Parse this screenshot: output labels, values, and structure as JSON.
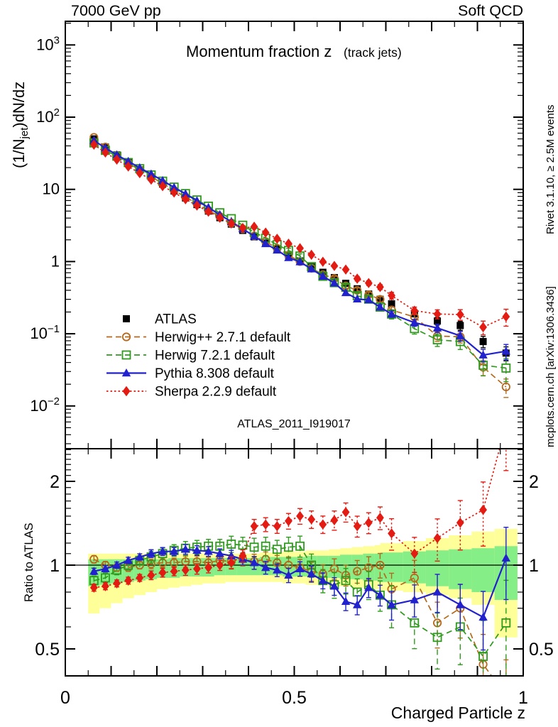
{
  "header": {
    "left": "7000 GeV pp",
    "right": "Soft QCD"
  },
  "titles": {
    "main": "Momentum fraction z",
    "sub": "(track jets)",
    "watermark": "ATLAS_2011_I919017",
    "xlabel": "Charged Particle z",
    "ylabel_pre": "(1/N",
    "ylabel_sub": "jet",
    "ylabel_post": ")dN/dz",
    "ratio_ylabel": "Ratio to ATLAS",
    "right_note_top": "Rivet 3.1.10, ≥ 2.5M events",
    "right_note_bottom": "mcplots.cern.ch [arXiv:1306.3436]"
  },
  "colors": {
    "axis": "#000000",
    "watermark": "#b3b3b3",
    "side_note": "#8a8a8a",
    "atlas": "#000000",
    "herwigpp": "#b5691c",
    "herwig7": "#2f9a1e",
    "pythia": "#2121cd",
    "sherpa": "#e31b12",
    "band_yellow": "#ffff99",
    "band_green": "#86ee86"
  },
  "axes": {
    "main_y_ticks": [
      {
        "v": 1000,
        "base": "10",
        "sup": "3"
      },
      {
        "v": 100,
        "base": "10",
        "sup": "2"
      },
      {
        "v": 10,
        "base": "10",
        "sup": ""
      },
      {
        "v": 1,
        "base": "1",
        "sup": ""
      },
      {
        "v": 0.1,
        "base": "10",
        "sup": "−1"
      },
      {
        "v": 0.01,
        "base": "10",
        "sup": "−2"
      }
    ],
    "ratio_y_ticks": [
      {
        "v": 2,
        "label": "2"
      },
      {
        "v": 1,
        "label": "1"
      },
      {
        "v": 0.5,
        "label": "0.5"
      }
    ],
    "x_ticks": [
      {
        "v": 0,
        "label": "0"
      },
      {
        "v": 0.5,
        "label": "0.5"
      },
      {
        "v": 1,
        "label": "1"
      }
    ]
  },
  "chart_data": {
    "type": "line",
    "title": "Momentum fraction z (track jets)",
    "xlabel": "Charged Particle z",
    "panels": [
      {
        "name": "spectrum",
        "ylabel": "(1/Njet)dN/dz",
        "yscale": "log",
        "ylim": [
          0.0026,
          2140
        ],
        "xlim": [
          0,
          1
        ]
      },
      {
        "name": "ratio",
        "ylabel": "Ratio to ATLAS",
        "yscale": "log",
        "ylim": [
          0.4,
          2.62
        ],
        "xlim": [
          0,
          1
        ]
      }
    ],
    "z": [
      0.0625,
      0.0875,
      0.1125,
      0.1375,
      0.1625,
      0.1875,
      0.2125,
      0.2375,
      0.2625,
      0.2875,
      0.3125,
      0.3375,
      0.3625,
      0.3875,
      0.4125,
      0.4375,
      0.4625,
      0.4875,
      0.5125,
      0.5375,
      0.5625,
      0.5875,
      0.6125,
      0.6375,
      0.6625,
      0.6875,
      0.7125,
      0.7625,
      0.8125,
      0.8625,
      0.9125,
      0.9625
    ],
    "bin_halfwidth": [
      0.0125,
      0.0125,
      0.0125,
      0.0125,
      0.0125,
      0.0125,
      0.0125,
      0.0125,
      0.0125,
      0.0125,
      0.0125,
      0.0125,
      0.0125,
      0.0125,
      0.0125,
      0.0125,
      0.0125,
      0.0125,
      0.0125,
      0.0125,
      0.0125,
      0.0125,
      0.0125,
      0.0125,
      0.0125,
      0.0125,
      0.025,
      0.025,
      0.025,
      0.025,
      0.025,
      0.025
    ],
    "rel_err": [
      0.02,
      0.02,
      0.02,
      0.02,
      0.02,
      0.025,
      0.025,
      0.025,
      0.03,
      0.03,
      0.03,
      0.03,
      0.035,
      0.035,
      0.04,
      0.04,
      0.04,
      0.045,
      0.045,
      0.05,
      0.05,
      0.055,
      0.055,
      0.06,
      0.06,
      0.065,
      0.09,
      0.1,
      0.12,
      0.14,
      0.18,
      0.22
    ],
    "series": [
      {
        "id": "atlas",
        "label": "ATLAS",
        "marker": "square-filled",
        "line": "none",
        "err_scale": 1.0,
        "values": [
          50,
          38.5,
          30,
          23.5,
          18.6,
          14.8,
          11.8,
          9.5,
          7.6,
          6.15,
          5.0,
          4.05,
          3.3,
          2.7,
          2.2,
          1.8,
          1.5,
          1.23,
          1.02,
          0.85,
          0.71,
          0.6,
          0.5,
          0.42,
          0.355,
          0.3,
          0.26,
          0.19,
          0.15,
          0.13,
          0.078,
          0.054
        ]
      },
      {
        "id": "herwigpp",
        "label": "Herwig++ 2.7.1 default",
        "marker": "circle-open",
        "line": "dashed",
        "err_scale": 1.3,
        "ratio_to_atlas": [
          1.05,
          1.0,
          0.98,
          0.98,
          1.0,
          1.01,
          1.02,
          1.02,
          1.03,
          1.03,
          1.02,
          1.04,
          1.03,
          1.05,
          1.03,
          1.05,
          1.02,
          1.0,
          0.98,
          0.95,
          0.93,
          0.97,
          0.92,
          0.95,
          0.98,
          1.0,
          0.82,
          0.9,
          0.62,
          0.7,
          0.44,
          0.34
        ]
      },
      {
        "id": "herwig7",
        "label": "Herwig 7.2.1 default",
        "marker": "square-open",
        "line": "dashed",
        "err_scale": 1.6,
        "ratio_to_atlas": [
          0.88,
          0.9,
          0.96,
          1.0,
          1.04,
          1.07,
          1.1,
          1.13,
          1.15,
          1.16,
          1.17,
          1.17,
          1.19,
          1.18,
          1.16,
          1.17,
          1.14,
          1.16,
          1.17,
          1.0,
          0.88,
          0.85,
          0.88,
          0.8,
          0.85,
          0.78,
          0.72,
          0.62,
          0.55,
          0.6,
          0.47,
          0.62
        ]
      },
      {
        "id": "pythia",
        "label": "Pythia 8.308 default",
        "marker": "triangle-filled",
        "line": "solid",
        "err_scale": 1.1,
        "ratio_to_atlas": [
          0.95,
          0.97,
          1.0,
          1.04,
          1.07,
          1.1,
          1.12,
          1.12,
          1.14,
          1.13,
          1.12,
          1.1,
          1.08,
          1.05,
          1.02,
          0.98,
          0.96,
          0.92,
          0.97,
          0.93,
          0.88,
          0.84,
          0.74,
          0.72,
          0.83,
          0.78,
          0.72,
          0.75,
          0.8,
          0.72,
          0.65,
          1.06
        ]
      },
      {
        "id": "sherpa",
        "label": "Sherpa 2.2.9 default",
        "marker": "diamond-filled",
        "line": "dotted",
        "err_scale": 1.2,
        "ratio_to_atlas": [
          0.83,
          0.84,
          0.86,
          0.88,
          0.9,
          0.92,
          0.94,
          0.95,
          0.96,
          0.97,
          0.98,
          1.0,
          1.02,
          1.08,
          1.38,
          1.4,
          1.38,
          1.44,
          1.5,
          1.46,
          1.4,
          1.45,
          1.55,
          1.38,
          1.42,
          1.48,
          1.3,
          1.1,
          1.25,
          1.42,
          1.58,
          3.2
        ]
      }
    ],
    "uncertainty_bands": {
      "yellow": {
        "lo": [
          0.67,
          0.7,
          0.73,
          0.76,
          0.78,
          0.8,
          0.82,
          0.83,
          0.84,
          0.85,
          0.86,
          0.86,
          0.87,
          0.87,
          0.87,
          0.87,
          0.87,
          0.86,
          0.86,
          0.85,
          0.85,
          0.84,
          0.84,
          0.83,
          0.83,
          0.82,
          0.81,
          0.8,
          0.78,
          0.76,
          0.72,
          0.55
        ],
        "hi": [
          1.1,
          1.1,
          1.1,
          1.1,
          1.1,
          1.1,
          1.1,
          1.1,
          1.1,
          1.1,
          1.1,
          1.1,
          1.1,
          1.1,
          1.1,
          1.11,
          1.11,
          1.12,
          1.12,
          1.13,
          1.13,
          1.14,
          1.15,
          1.16,
          1.17,
          1.18,
          1.2,
          1.22,
          1.25,
          1.28,
          1.32,
          1.35
        ]
      },
      "green": {
        "lo": [
          0.84,
          0.85,
          0.86,
          0.87,
          0.88,
          0.89,
          0.9,
          0.9,
          0.91,
          0.91,
          0.91,
          0.92,
          0.92,
          0.92,
          0.92,
          0.92,
          0.92,
          0.91,
          0.91,
          0.91,
          0.9,
          0.9,
          0.89,
          0.89,
          0.88,
          0.88,
          0.87,
          0.86,
          0.84,
          0.82,
          0.8,
          0.75
        ],
        "hi": [
          1.05,
          1.05,
          1.05,
          1.05,
          1.05,
          1.05,
          1.05,
          1.06,
          1.06,
          1.06,
          1.06,
          1.06,
          1.06,
          1.06,
          1.06,
          1.07,
          1.07,
          1.07,
          1.07,
          1.08,
          1.08,
          1.08,
          1.09,
          1.09,
          1.1,
          1.1,
          1.11,
          1.12,
          1.13,
          1.14,
          1.15,
          1.17
        ]
      }
    }
  }
}
